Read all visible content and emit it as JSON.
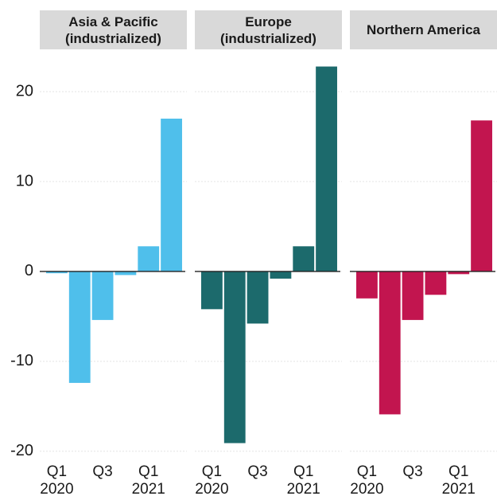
{
  "chart_data": [
    {
      "type": "bar",
      "title": "Asia & Pacific\n(industrialized)",
      "categories": [
        "Q1\n2020",
        null,
        "Q3",
        null,
        "Q1\n2021",
        null
      ],
      "values": [
        -0.2,
        -12.4,
        -5.4,
        -0.4,
        2.8,
        17.0
      ],
      "color": "#4fbfeb",
      "ylim": [
        -21,
        24
      ],
      "yticks": [
        -20,
        -10,
        0,
        10,
        20
      ],
      "grid": true
    },
    {
      "type": "bar",
      "title": "Europe\n(industrialized)",
      "categories": [
        "Q1\n2020",
        null,
        "Q3",
        null,
        "Q1\n2021",
        null
      ],
      "values": [
        -4.2,
        -19.1,
        -5.8,
        -0.8,
        2.8,
        22.8
      ],
      "color": "#1c6a6c",
      "ylim": [
        -21,
        24
      ],
      "yticks": [
        -20,
        -10,
        0,
        10,
        20
      ],
      "grid": true
    },
    {
      "type": "bar",
      "title": "Northern America",
      "categories": [
        "Q1\n2020",
        null,
        "Q3",
        null,
        "Q1\n2021",
        null
      ],
      "values": [
        -3.0,
        -15.9,
        -5.4,
        -2.6,
        -0.3,
        16.8
      ],
      "color": "#c2154f",
      "ylim": [
        -21,
        24
      ],
      "yticks": [
        -20,
        -10,
        0,
        10,
        20
      ],
      "grid": true
    }
  ]
}
